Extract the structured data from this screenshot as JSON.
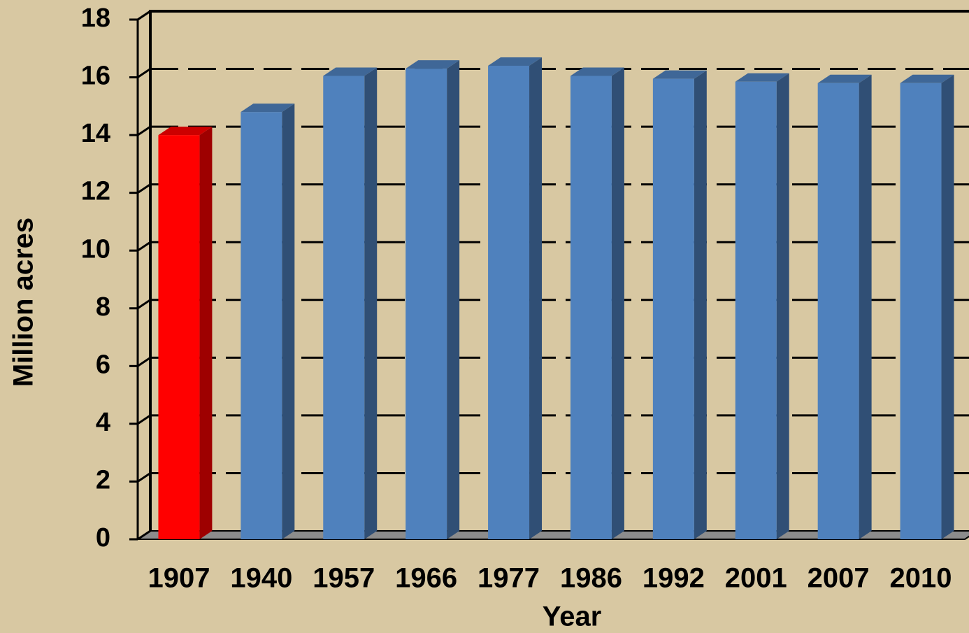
{
  "chart_data": {
    "type": "bar3d",
    "x_label": "Year",
    "y_label": "Million acres",
    "categories": [
      "1907",
      "1940",
      "1957",
      "1966",
      "1977",
      "1986",
      "1992",
      "2001",
      "2007",
      "2010"
    ],
    "values": [
      14,
      14.8,
      16.05,
      16.3,
      16.4,
      16.05,
      15.95,
      15.85,
      15.8,
      15.8
    ],
    "colors": [
      "#ff0000",
      "#4f81bd",
      "#4f81bd",
      "#4f81bd",
      "#4f81bd",
      "#4f81bd",
      "#4f81bd",
      "#4f81bd",
      "#4f81bd",
      "#4f81bd"
    ],
    "ylim": [
      0,
      18
    ],
    "yticks": [
      0,
      2,
      4,
      6,
      8,
      10,
      12,
      14,
      16,
      18
    ],
    "grid": true
  }
}
